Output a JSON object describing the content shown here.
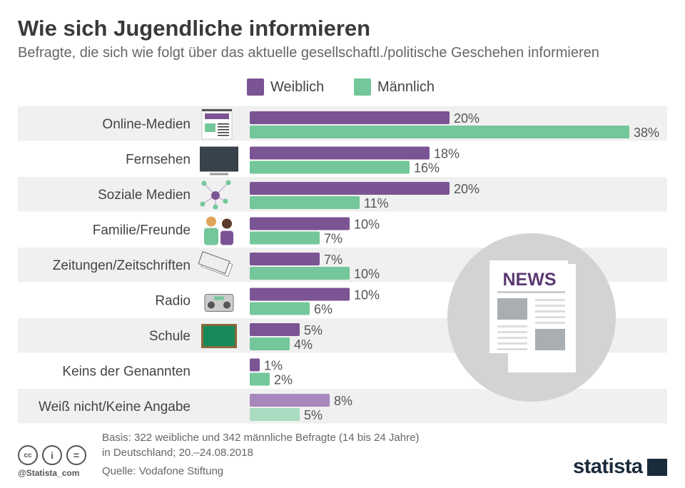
{
  "title": "Wie sich Jugendliche informieren",
  "subtitle": "Befragte, die sich wie folgt über das aktuelle gesellschaftl./politische Geschehen informieren",
  "colors": {
    "weiblich": "#7b5494",
    "maennlich": "#73c79a",
    "weiblich_na": "#a887bd",
    "maennlich_na": "#a9dcc0",
    "band": "#f0f0f0"
  },
  "chart_data": {
    "type": "bar",
    "orientation": "horizontal",
    "categories": [
      "Online-Medien",
      "Fernsehen",
      "Soziale Medien",
      "Familie/Freunde",
      "Zeitungen/Zeitschriften",
      "Radio",
      "Schule",
      "Keins der Genannten",
      "Weiß nicht/Keine Angabe"
    ],
    "icons": [
      "webpage-icon",
      "tv-icon",
      "network-icon",
      "family-icon",
      "newspapers-icon",
      "radio-icon",
      "chalkboard-icon",
      "",
      ""
    ],
    "series": [
      {
        "name": "Weiblich",
        "values": [
          20,
          18,
          20,
          10,
          7,
          10,
          5,
          1,
          8
        ]
      },
      {
        "name": "Männlich",
        "values": [
          38,
          16,
          11,
          7,
          10,
          6,
          4,
          2,
          5
        ]
      }
    ],
    "unit": "%",
    "legend": "top",
    "grid": false
  },
  "news_badge": "NEWS",
  "footer": {
    "basis_line1": "Basis: 322 weibliche und 342 männliche Befragte (14 bis 24 Jahre)",
    "basis_line2": "in Deutschland; 20.–24.08.2018",
    "source": "Quelle: Vodafone Stiftung",
    "handle": "@Statista_com",
    "brand": "statista"
  }
}
